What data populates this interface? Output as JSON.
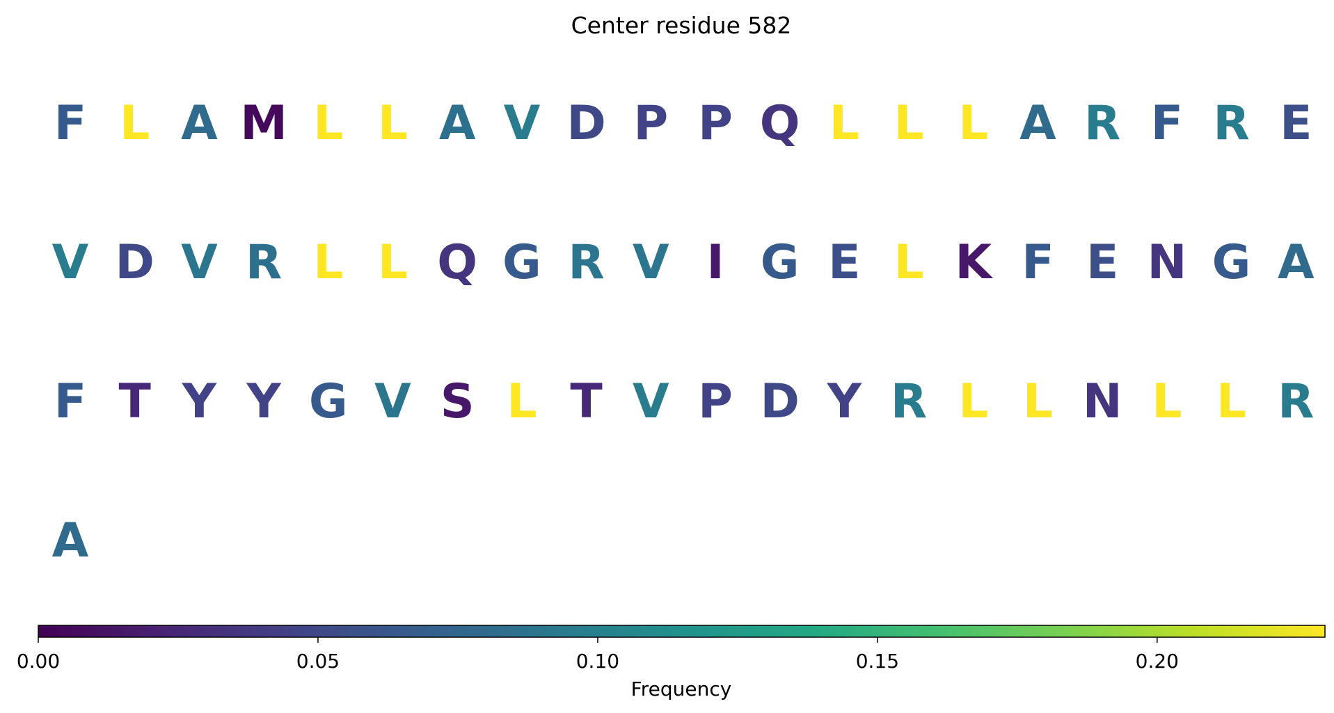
{
  "chart_data": {
    "type": "heatmap",
    "title": "Center residue 582",
    "rows": [
      [
        "F",
        "L",
        "A",
        "M",
        "L",
        "L",
        "A",
        "V",
        "D",
        "P",
        "P",
        "Q",
        "L",
        "L",
        "L",
        "A",
        "R",
        "F",
        "R",
        "E"
      ],
      [
        "V",
        "D",
        "V",
        "R",
        "L",
        "L",
        "Q",
        "G",
        "R",
        "V",
        "I",
        "G",
        "E",
        "L",
        "K",
        "F",
        "E",
        "N",
        "G",
        "A"
      ],
      [
        "F",
        "T",
        "Y",
        "Y",
        "G",
        "V",
        "S",
        "L",
        "T",
        "V",
        "P",
        "D",
        "Y",
        "R",
        "L",
        "L",
        "N",
        "L",
        "L",
        "R"
      ],
      [
        "A"
      ]
    ],
    "frequencies": [
      [
        0.065,
        0.23,
        0.08,
        0.005,
        0.23,
        0.23,
        0.085,
        0.095,
        0.05,
        0.045,
        0.045,
        0.035,
        0.23,
        0.23,
        0.23,
        0.08,
        0.095,
        0.065,
        0.095,
        0.055
      ],
      [
        0.095,
        0.05,
        0.09,
        0.085,
        0.23,
        0.23,
        0.035,
        0.065,
        0.09,
        0.09,
        0.015,
        0.065,
        0.055,
        0.23,
        0.015,
        0.065,
        0.055,
        0.035,
        0.065,
        0.08
      ],
      [
        0.065,
        0.025,
        0.045,
        0.045,
        0.065,
        0.09,
        0.015,
        0.23,
        0.025,
        0.095,
        0.045,
        0.05,
        0.045,
        0.095,
        0.23,
        0.23,
        0.035,
        0.23,
        0.23,
        0.095
      ],
      [
        0.08
      ]
    ],
    "colorbar": {
      "label": "Frequency",
      "vmin": 0.0,
      "vmax": 0.23,
      "ticks": [
        0.0,
        0.05,
        0.1,
        0.15,
        0.2
      ],
      "tick_labels": [
        "0.00",
        "0.05",
        "0.10",
        "0.15",
        "0.20"
      ],
      "colormap": "viridis",
      "orientation": "horizontal",
      "placement": "bottom"
    },
    "grid": false
  }
}
